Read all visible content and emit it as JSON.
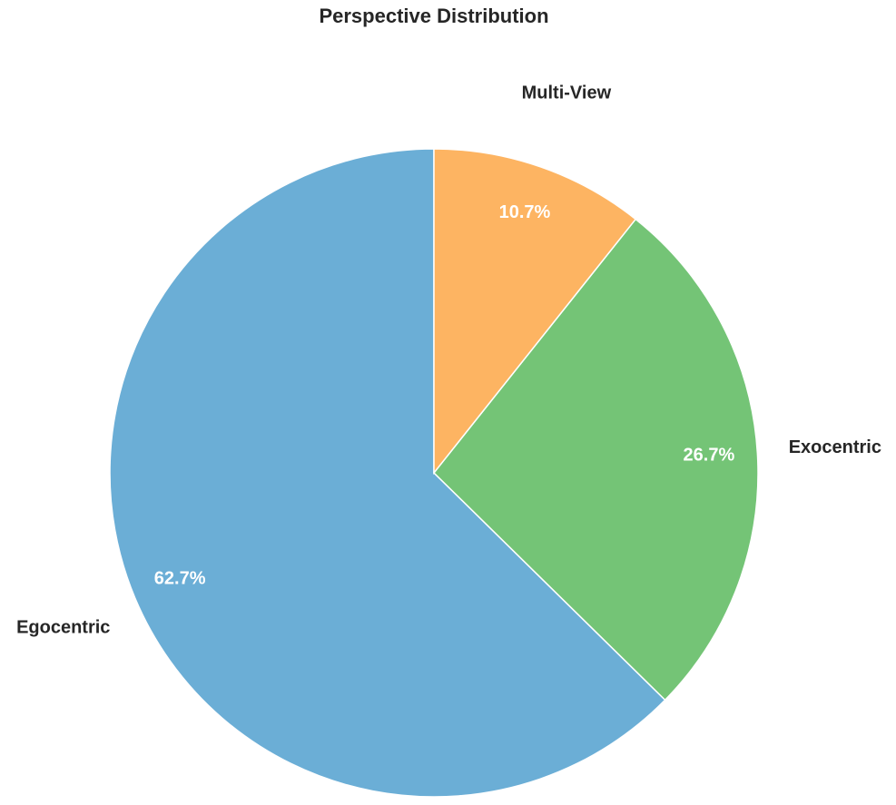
{
  "chart_data": {
    "type": "pie",
    "title": "Perspective Distribution",
    "categories": [
      "Egocentric",
      "Exocentric",
      "Multi-View"
    ],
    "values": [
      62.7,
      26.7,
      10.7
    ],
    "value_labels": [
      "62.7%",
      "26.7%",
      "10.7%"
    ],
    "colors": [
      "#6baed6",
      "#74c476",
      "#fdb462"
    ]
  }
}
